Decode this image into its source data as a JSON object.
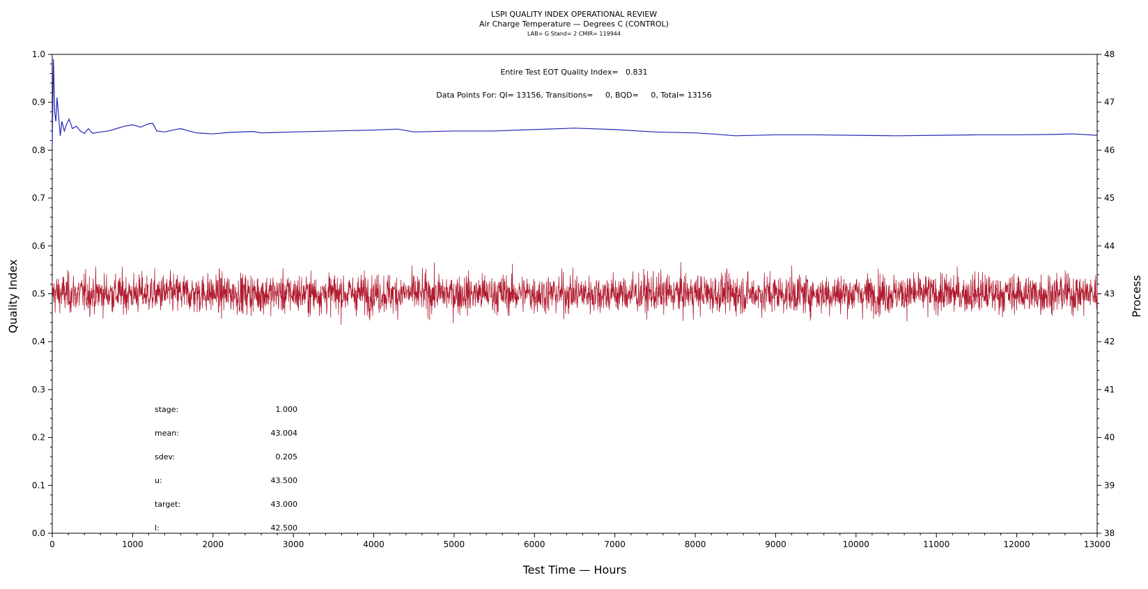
{
  "chart_data": {
    "type": "line",
    "title": "LSPI QUALITY INDEX OPERATIONAL REVIEW",
    "subtitle": "Air Charge Temperature — Degrees C (CONTROL)",
    "subsubtitle": "LAB= G Stand= 2 CMIR= 119944",
    "xlabel": "Test Time — Hours",
    "ylabel_left": "Quality Index",
    "ylabel_right": "Process",
    "xlim": [
      0,
      13000
    ],
    "ylim_left": [
      0.0,
      1.0
    ],
    "ylim_right": [
      38,
      48
    ],
    "x_ticks": [
      "0",
      "1000",
      "2000",
      "3000",
      "4000",
      "5000",
      "6000",
      "7000",
      "8000",
      "9000",
      "10000",
      "11000",
      "12000",
      "13000"
    ],
    "y_left_ticks": [
      "0.0",
      "0.1",
      "0.2",
      "0.3",
      "0.4",
      "0.5",
      "0.6",
      "0.7",
      "0.8",
      "0.9",
      "1.0"
    ],
    "y_right_ticks": [
      "38",
      "39",
      "40",
      "41",
      "42",
      "43",
      "44",
      "45",
      "46",
      "47",
      "48"
    ],
    "annotation_qi": "Entire Test EOT Quality Index=   0.831",
    "annotation_points": "Data Points For: QI= 13156, Transitions=     0, BQD=     0, Total= 13156",
    "stats": [
      {
        "label": "stage:",
        "value": "1.000"
      },
      {
        "label": "mean:",
        "value": "43.004"
      },
      {
        "label": "sdev:",
        "value": "0.205"
      },
      {
        "label": "u:",
        "value": "43.500"
      },
      {
        "label": "target:",
        "value": "43.000"
      },
      {
        "label": "l:",
        "value": "42.500"
      }
    ],
    "series": [
      {
        "axis": "left",
        "color": "#2424b8",
        "x": [
          0,
          15,
          30,
          45,
          60,
          80,
          100,
          120,
          150,
          180,
          210,
          250,
          300,
          350,
          400,
          450,
          500,
          600,
          700,
          800,
          900,
          1000,
          1100,
          1200,
          1250,
          1300,
          1400,
          1500,
          1600,
          1700,
          1800,
          1900,
          2000,
          2200,
          2500,
          2600,
          2800,
          3000,
          3500,
          4000,
          4300,
          4500,
          5000,
          5500,
          6000,
          6500,
          7000,
          7500,
          8000,
          8200,
          8500,
          9000,
          9500,
          10000,
          10500,
          11000,
          11500,
          12000,
          12500,
          12700,
          13000
        ],
        "values": [
          0.81,
          0.99,
          0.88,
          0.86,
          0.91,
          0.87,
          0.83,
          0.86,
          0.84,
          0.855,
          0.865,
          0.845,
          0.85,
          0.84,
          0.835,
          0.845,
          0.835,
          0.838,
          0.84,
          0.845,
          0.85,
          0.853,
          0.848,
          0.855,
          0.856,
          0.84,
          0.838,
          0.842,
          0.845,
          0.84,
          0.836,
          0.835,
          0.834,
          0.837,
          0.839,
          0.836,
          0.837,
          0.838,
          0.84,
          0.842,
          0.844,
          0.838,
          0.84,
          0.84,
          0.843,
          0.846,
          0.843,
          0.838,
          0.836,
          0.834,
          0.83,
          0.832,
          0.832,
          0.831,
          0.83,
          0.831,
          0.832,
          0.832,
          0.833,
          0.834,
          0.831
        ]
      },
      {
        "axis": "right",
        "color": "#b01a2e",
        "mean": 43.004,
        "sdev": 0.205,
        "n_points": 13156,
        "x_range": [
          0,
          13000
        ]
      }
    ]
  }
}
